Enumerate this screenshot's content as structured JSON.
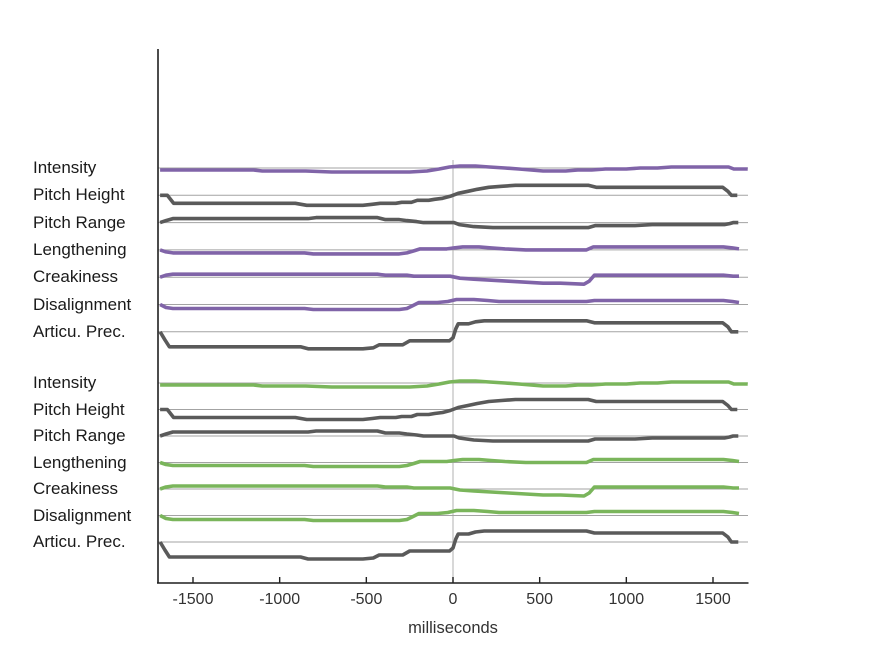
{
  "chart_data": {
    "type": "line",
    "xlabel": "milliseconds",
    "x_ticks": [
      -1500,
      -1000,
      -500,
      0,
      500,
      1000,
      1500
    ],
    "x_range_ms": [
      -1700,
      1700
    ],
    "zero_line_x": 0,
    "legend": "none",
    "grid": "per-row horizontal baselines plus vertical reference line at 0 ms",
    "palette": {
      "purple": "#8064a8",
      "green": "#7ab55b",
      "gray": "#5a5a5a",
      "baseline": "#a3a3a3",
      "zero_line": "#cfcfcf",
      "axis": "#1f1f1f",
      "label": "#1a1a1a",
      "tick_label": "#333333"
    },
    "groups": [
      {
        "name": "group-1",
        "rows": [
          {
            "label": "Intensity",
            "color": "purple",
            "shape": "intensity"
          },
          {
            "label": "Pitch Height",
            "color": "gray",
            "shape": "pitch_height"
          },
          {
            "label": "Pitch Range",
            "color": "gray",
            "shape": "pitch_range"
          },
          {
            "label": "Lengthening",
            "color": "purple",
            "shape": "lengthening"
          },
          {
            "label": "Creakiness",
            "color": "purple",
            "shape": "creakiness"
          },
          {
            "label": "Disalignment",
            "color": "purple",
            "shape": "disalignment"
          },
          {
            "label": "Articu. Prec.",
            "color": "gray",
            "shape": "articu_prec"
          }
        ]
      },
      {
        "name": "group-2",
        "rows": [
          {
            "label": "Intensity",
            "color": "green",
            "shape": "intensity"
          },
          {
            "label": "Pitch Height",
            "color": "gray",
            "shape": "pitch_height"
          },
          {
            "label": "Pitch Range",
            "color": "gray",
            "shape": "pitch_range"
          },
          {
            "label": "Lengthening",
            "color": "green",
            "shape": "lengthening"
          },
          {
            "label": "Creakiness",
            "color": "green",
            "shape": "creakiness"
          },
          {
            "label": "Disalignment",
            "color": "green",
            "shape": "disalignment"
          },
          {
            "label": "Articu. Prec.",
            "color": "gray",
            "shape": "articu_prec"
          }
        ]
      }
    ],
    "shape_units": "points are [milliseconds, vertical offset from row baseline; positive = above]",
    "shapes": {
      "intensity": [
        [
          -1690,
          -2
        ],
        [
          -1400,
          -2
        ],
        [
          -1150,
          -2
        ],
        [
          -1100,
          -3
        ],
        [
          -850,
          -3
        ],
        [
          -700,
          -4
        ],
        [
          -350,
          -4
        ],
        [
          -250,
          -4
        ],
        [
          -150,
          -3
        ],
        [
          -80,
          -1
        ],
        [
          -20,
          1
        ],
        [
          40,
          2
        ],
        [
          130,
          2
        ],
        [
          210,
          1
        ],
        [
          300,
          0
        ],
        [
          380,
          -1
        ],
        [
          450,
          -2
        ],
        [
          520,
          -3
        ],
        [
          650,
          -3
        ],
        [
          720,
          -2
        ],
        [
          800,
          -2
        ],
        [
          880,
          -1
        ],
        [
          1000,
          -1
        ],
        [
          1080,
          0
        ],
        [
          1180,
          0
        ],
        [
          1260,
          1
        ],
        [
          1500,
          1
        ],
        [
          1590,
          1
        ],
        [
          1620,
          -1
        ],
        [
          1700,
          -1
        ]
      ],
      "pitch_height": [
        [
          -1690,
          0
        ],
        [
          -1648,
          0
        ],
        [
          -1612,
          -8
        ],
        [
          -910,
          -8
        ],
        [
          -844,
          -10
        ],
        [
          -520,
          -10
        ],
        [
          -466,
          -9
        ],
        [
          -420,
          -8
        ],
        [
          -330,
          -8
        ],
        [
          -296,
          -7
        ],
        [
          -240,
          -7
        ],
        [
          -206,
          -5
        ],
        [
          -140,
          -5
        ],
        [
          -106,
          -4
        ],
        [
          -60,
          -3
        ],
        [
          -16,
          -1
        ],
        [
          30,
          2
        ],
        [
          86,
          4
        ],
        [
          140,
          6
        ],
        [
          206,
          8
        ],
        [
          280,
          9
        ],
        [
          360,
          10
        ],
        [
          780,
          10
        ],
        [
          826,
          8
        ],
        [
          1100,
          8
        ],
        [
          1556,
          8
        ],
        [
          1586,
          4
        ],
        [
          1606,
          0
        ],
        [
          1640,
          0
        ]
      ],
      "pitch_range": [
        [
          -1690,
          0
        ],
        [
          -1656,
          2
        ],
        [
          -1616,
          4
        ],
        [
          -836,
          4
        ],
        [
          -790,
          5
        ],
        [
          -436,
          5
        ],
        [
          -390,
          3
        ],
        [
          -310,
          3
        ],
        [
          -266,
          2
        ],
        [
          -210,
          1
        ],
        [
          -170,
          0
        ],
        [
          -60,
          0
        ],
        [
          6,
          0
        ],
        [
          36,
          -2
        ],
        [
          120,
          -4
        ],
        [
          230,
          -5
        ],
        [
          780,
          -5
        ],
        [
          820,
          -3
        ],
        [
          1050,
          -3
        ],
        [
          1150,
          -2
        ],
        [
          1450,
          -2
        ],
        [
          1566,
          -2
        ],
        [
          1596,
          -1
        ],
        [
          1616,
          0
        ],
        [
          1646,
          0
        ]
      ],
      "lengthening": [
        [
          -1690,
          0
        ],
        [
          -1656,
          -2
        ],
        [
          -1616,
          -3
        ],
        [
          -856,
          -3
        ],
        [
          -806,
          -4
        ],
        [
          -310,
          -4
        ],
        [
          -266,
          -3
        ],
        [
          -226,
          -1
        ],
        [
          -190,
          1
        ],
        [
          -90,
          1
        ],
        [
          -36,
          1
        ],
        [
          6,
          2
        ],
        [
          56,
          3
        ],
        [
          150,
          3
        ],
        [
          220,
          2
        ],
        [
          300,
          1
        ],
        [
          420,
          0
        ],
        [
          770,
          0
        ],
        [
          810,
          3
        ],
        [
          1300,
          3
        ],
        [
          1560,
          3
        ],
        [
          1612,
          2
        ],
        [
          1650,
          1
        ]
      ],
      "creakiness": [
        [
          -1690,
          0
        ],
        [
          -1656,
          2
        ],
        [
          -1616,
          3
        ],
        [
          -800,
          3
        ],
        [
          -436,
          3
        ],
        [
          -390,
          2
        ],
        [
          -266,
          2
        ],
        [
          -226,
          1
        ],
        [
          -120,
          1
        ],
        [
          -16,
          1
        ],
        [
          40,
          -1
        ],
        [
          120,
          -2
        ],
        [
          220,
          -3
        ],
        [
          320,
          -4
        ],
        [
          420,
          -5
        ],
        [
          520,
          -6
        ],
        [
          620,
          -6
        ],
        [
          756,
          -7
        ],
        [
          786,
          -4
        ],
        [
          816,
          2
        ],
        [
          1100,
          2
        ],
        [
          1560,
          2
        ],
        [
          1616,
          1
        ],
        [
          1650,
          1
        ]
      ],
      "disalignment": [
        [
          -1690,
          0
        ],
        [
          -1656,
          -3
        ],
        [
          -1616,
          -4
        ],
        [
          -856,
          -4
        ],
        [
          -806,
          -5
        ],
        [
          -310,
          -5
        ],
        [
          -266,
          -4
        ],
        [
          -230,
          -1
        ],
        [
          -196,
          2
        ],
        [
          -90,
          2
        ],
        [
          -30,
          3
        ],
        [
          20,
          5
        ],
        [
          120,
          5
        ],
        [
          200,
          4
        ],
        [
          266,
          3
        ],
        [
          500,
          3
        ],
        [
          770,
          3
        ],
        [
          816,
          4
        ],
        [
          1300,
          4
        ],
        [
          1560,
          4
        ],
        [
          1612,
          3
        ],
        [
          1650,
          2
        ]
      ],
      "articu_prec": [
        [
          -1690,
          0
        ],
        [
          -1662,
          -8
        ],
        [
          -1636,
          -15
        ],
        [
          -880,
          -15
        ],
        [
          -836,
          -17
        ],
        [
          -520,
          -17
        ],
        [
          -460,
          -16
        ],
        [
          -426,
          -13
        ],
        [
          -290,
          -13
        ],
        [
          -250,
          -9
        ],
        [
          -150,
          -9
        ],
        [
          -20,
          -9
        ],
        [
          0,
          -6
        ],
        [
          16,
          3
        ],
        [
          30,
          8
        ],
        [
          90,
          8
        ],
        [
          130,
          10
        ],
        [
          180,
          11
        ],
        [
          300,
          11
        ],
        [
          770,
          11
        ],
        [
          816,
          9
        ],
        [
          1200,
          9
        ],
        [
          1556,
          9
        ],
        [
          1586,
          5
        ],
        [
          1606,
          0
        ],
        [
          1646,
          0
        ]
      ]
    }
  }
}
